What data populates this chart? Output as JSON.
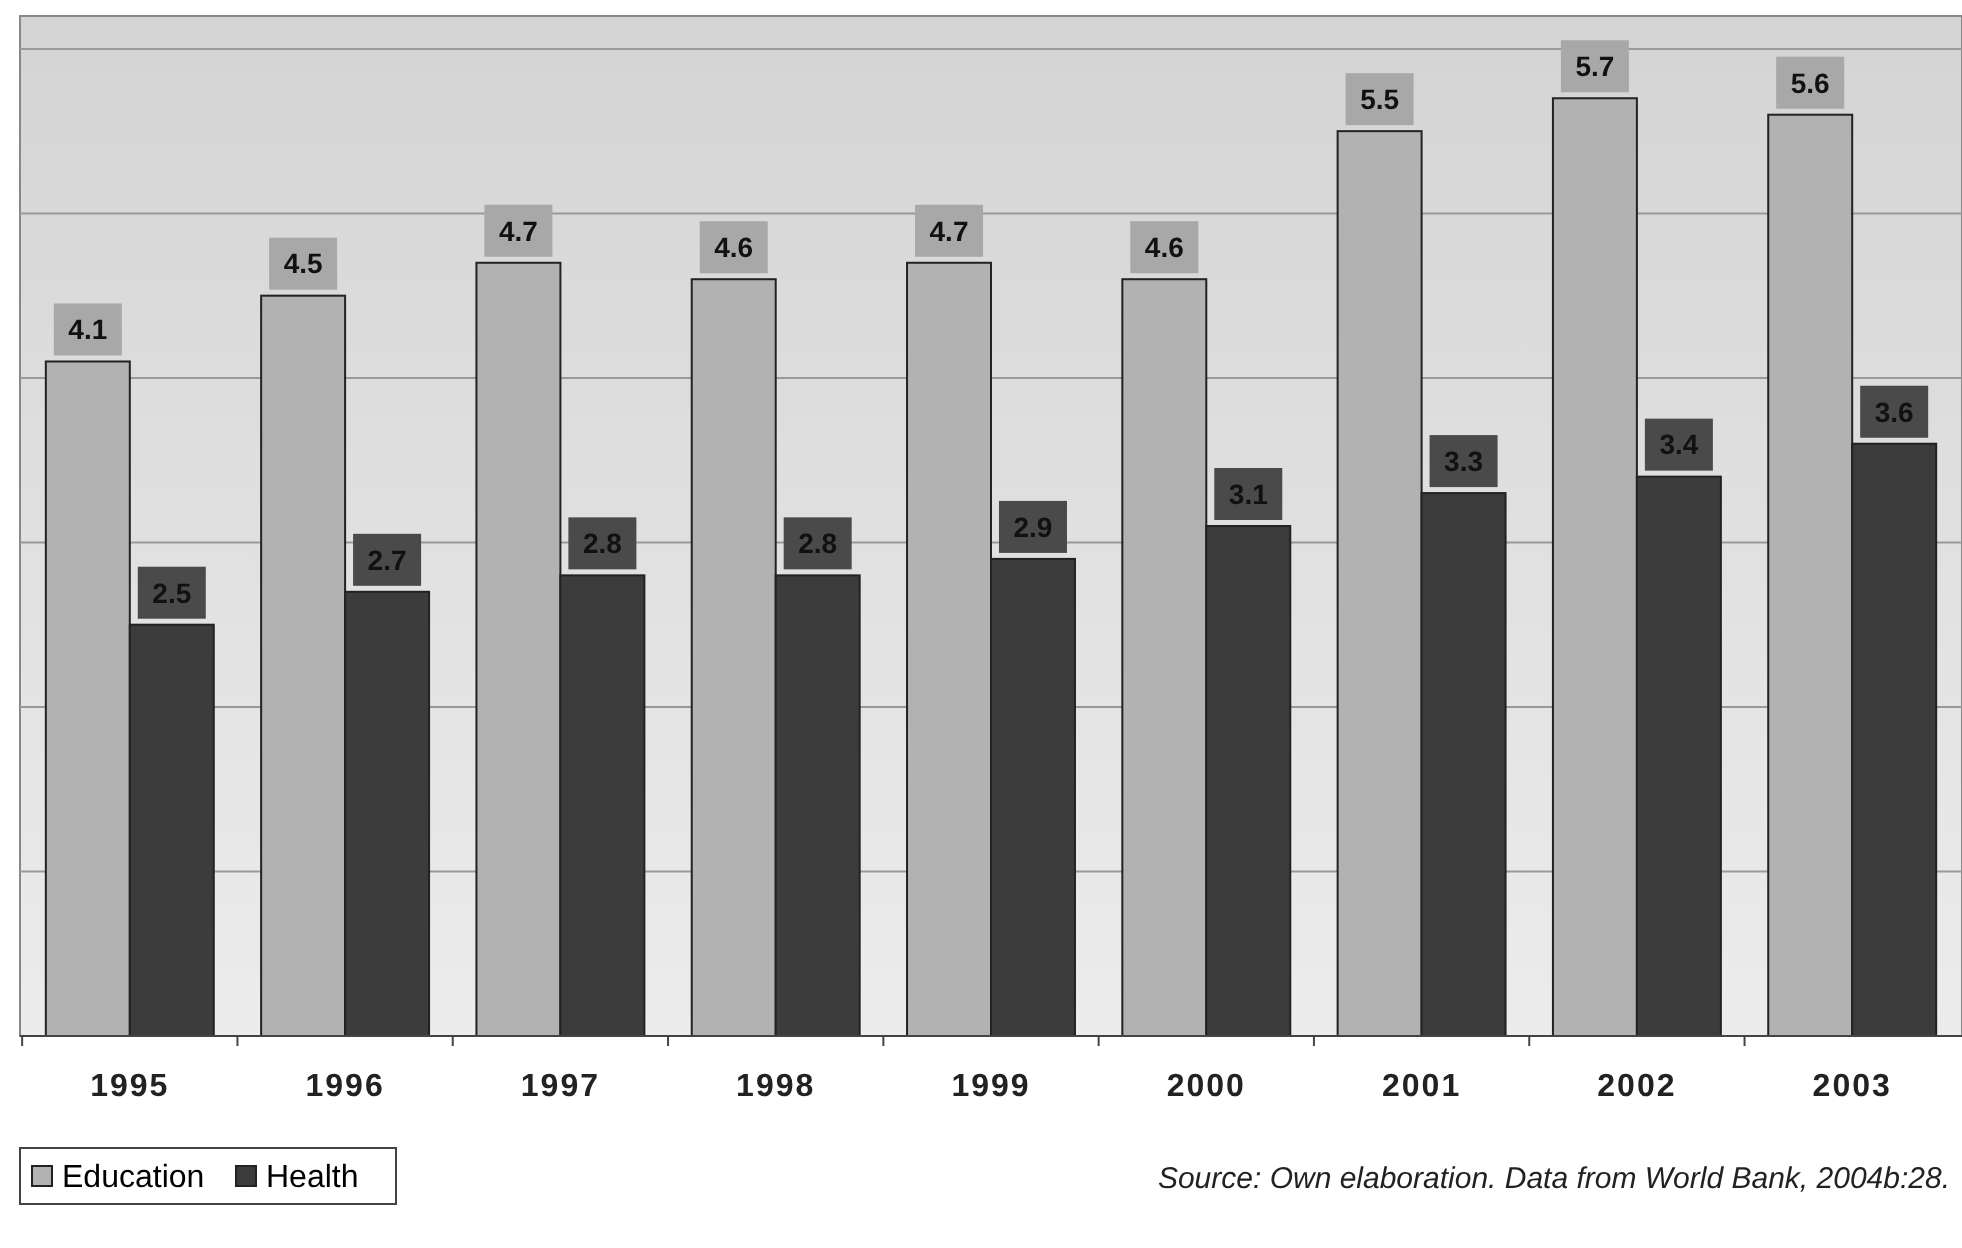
{
  "chart_data": {
    "type": "bar",
    "categories": [
      "1995",
      "1996",
      "1997",
      "1998",
      "1999",
      "2000",
      "2001",
      "2002",
      "2003"
    ],
    "series": [
      {
        "name": "Education",
        "color": "#b2b2b2",
        "values": [
          4.1,
          4.5,
          4.7,
          4.6,
          4.7,
          4.6,
          5.5,
          5.7,
          5.6
        ]
      },
      {
        "name": "Health",
        "color": "#3c3c3c",
        "values": [
          2.5,
          2.7,
          2.8,
          2.8,
          2.9,
          3.1,
          3.3,
          3.4,
          3.6
        ]
      }
    ],
    "ylim": [
      0,
      6.2
    ],
    "yticks": [
      {
        "value": 0,
        "label": null
      },
      {
        "value": 1,
        "label": null
      },
      {
        "value": 2,
        "label": null
      },
      {
        "value": 3,
        "label": null
      },
      {
        "value": 4,
        "label": null
      },
      {
        "value": 5,
        "label": null
      },
      {
        "value": 6,
        "label": null
      }
    ],
    "tick_labels": "x",
    "grid": "y",
    "data_labels": true,
    "legend": "bottom left",
    "annotations": [
      "Source: Own elaboration. Data from World Bank, 2004b:28."
    ]
  }
}
